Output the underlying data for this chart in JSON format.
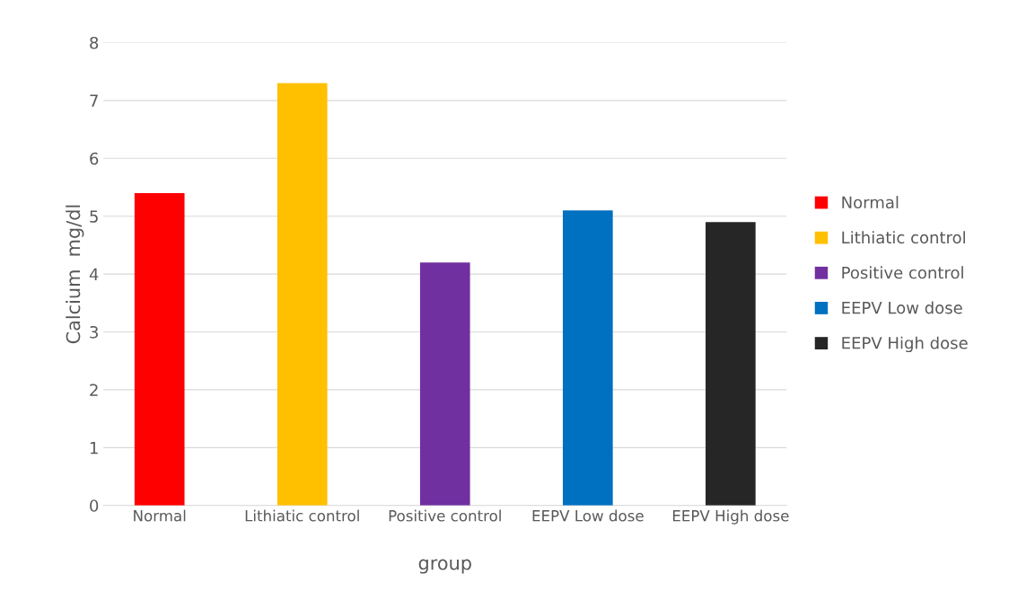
{
  "chart_data": {
    "type": "bar",
    "xlabel": "group",
    "ylabel": "Calcium  mg/dl",
    "categories": [
      "Normal",
      "Lithiatic control",
      "Positive control",
      "EEPV Low dose",
      "EEPV High dose"
    ],
    "series": [
      {
        "name": "Normal",
        "color": "#ff0000",
        "values": [
          5.4,
          null,
          null,
          null,
          null
        ]
      },
      {
        "name": "Lithiatic control",
        "color": "#ffc000",
        "values": [
          null,
          7.3,
          null,
          null,
          null
        ]
      },
      {
        "name": "Positive control",
        "color": "#7030a0",
        "values": [
          null,
          null,
          4.2,
          null,
          null
        ]
      },
      {
        "name": "EEPV Low dose",
        "color": "#0070c0",
        "values": [
          null,
          null,
          null,
          5.1,
          null
        ]
      },
      {
        "name": "EEPV High dose",
        "color": "#262626",
        "values": [
          null,
          null,
          null,
          null,
          4.9
        ]
      }
    ],
    "ylim": [
      0,
      8
    ],
    "yticks": [
      0,
      1,
      2,
      3,
      4,
      5,
      6,
      7,
      8
    ],
    "grid": "y",
    "legend": "right"
  }
}
